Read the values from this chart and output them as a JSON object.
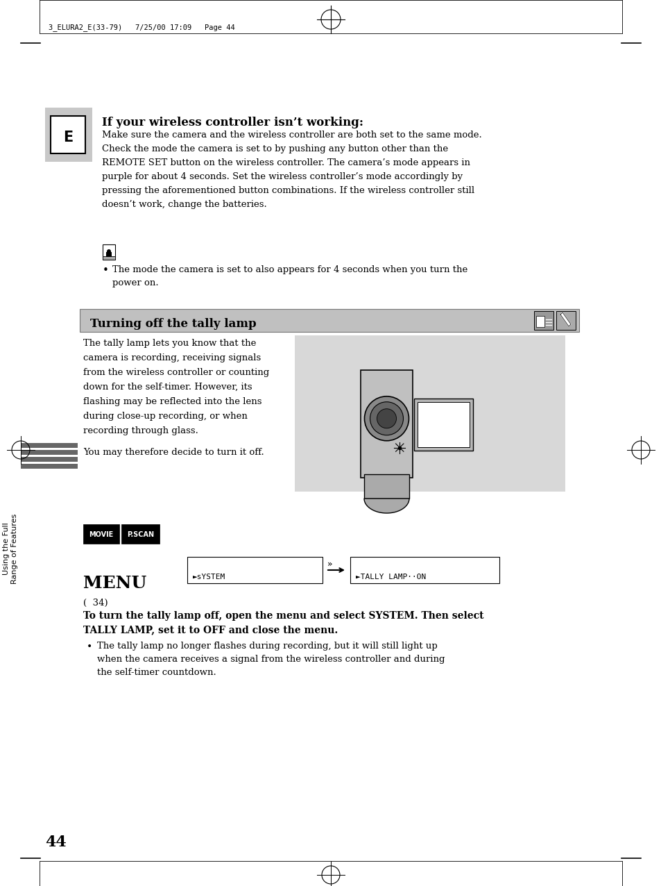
{
  "bg_color": "#ffffff",
  "page_number": "44",
  "header_text": "3_ELURA2_E(33-79)   7/25/00 17:09   Page 44",
  "section_e_title": "If your wireless controller isn’t working:",
  "section_e_body": [
    "Make sure the camera and the wireless controller are both set to the same mode.",
    "Check the mode the camera is set to by pushing any button other than the",
    "REMOTE SET button on the wireless controller. The camera’s mode appears in",
    "purple for about 4 seconds. Set the wireless controller’s mode accordingly by",
    "pressing the aforementioned button combinations. If the wireless controller still",
    "doesn’t work, change the batteries."
  ],
  "section_header": "Turning off the tally lamp",
  "tally_body": [
    "The tally lamp lets you know that the",
    "camera is recording, receiving signals",
    "from the wireless controller or counting",
    "down for the self-timer. However, its",
    "flashing may be reflected into the lens",
    "during close-up recording, or when",
    "recording through glass."
  ],
  "tally_body2": "You may therefore decide to turn it off.",
  "note_line1": "The mode the camera is set to also appears for 4 seconds when you turn the",
  "note_line2": "power on.",
  "system_label": "►sYSTEM",
  "tally_label": "►TALLY LAMP··ON",
  "menu_ref": "(  34)",
  "instr_bold1": "To turn the tally lamp off, open the menu and select SYSTEM. Then select",
  "instr_bold2": "TALLY LAMP, set it to OFF and close the menu.",
  "instr_bullet": "The tally lamp no longer flashes during recording, but it will still light up",
  "instr_bullet2": "when the camera receives a signal from the wireless controller and during",
  "instr_bullet3": "the self-timer countdown.",
  "sidebar_text": "Using the Full\nRange of Features",
  "gray_bar_color": "#888888",
  "header_gray": "#c0c0c0"
}
